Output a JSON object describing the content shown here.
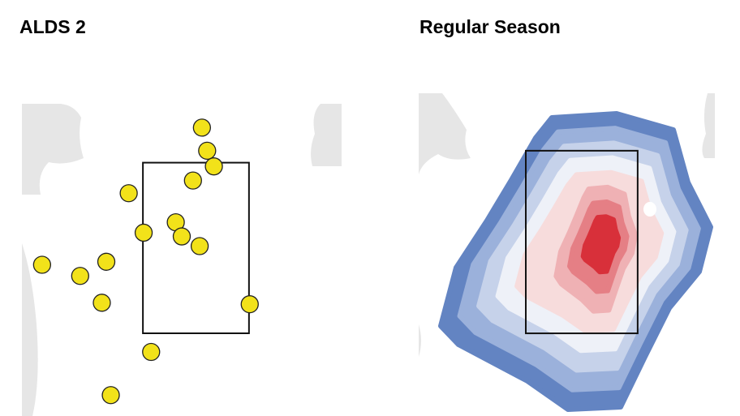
{
  "chart_data": [
    {
      "type": "scatter",
      "title": "ALDS 2",
      "x": [
        0.08,
        0.15,
        0.24,
        -0.04,
        -0.9,
        -0.27,
        -0.7,
        -0.19,
        0.05,
        -2.06,
        -1.2,
        -1.55,
        -1.26,
        0.72,
        -0.6,
        -1.14
      ],
      "values": [
        4.26,
        3.95,
        3.74,
        3.55,
        3.38,
        2.99,
        2.85,
        2.8,
        2.67,
        2.42,
        2.46,
        2.27,
        1.91,
        1.89,
        1.25,
        0.67
      ],
      "color": "#f2e21a",
      "zone": {
        "x": [
          -0.71,
          0.71
        ],
        "y": [
          1.5,
          3.79
        ]
      },
      "xlim": [
        -2.33,
        1.95
      ],
      "ylim": [
        0.39,
        4.58
      ]
    },
    {
      "type": "density",
      "title": "Regular Season",
      "colors": [
        "#6384c2",
        "#9bb1db",
        "#c6d2ea",
        "#eef1f8",
        "#f7dcdc",
        "#efb1b4",
        "#e57f85",
        "#d8303a"
      ],
      "zone": {
        "x": [
          -0.71,
          0.71
        ],
        "y": [
          1.5,
          3.82
        ]
      },
      "xlim": [
        -2.07,
        1.69
      ],
      "ylim": [
        0.45,
        4.55
      ]
    }
  ]
}
